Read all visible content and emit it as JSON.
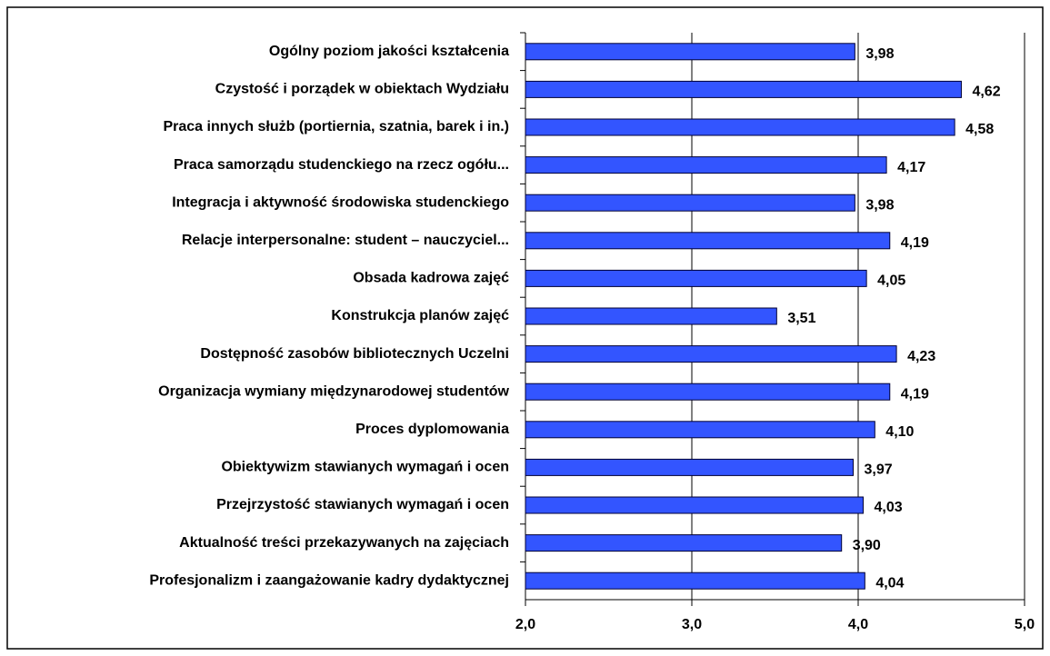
{
  "chart_data": {
    "type": "bar",
    "orientation": "horizontal",
    "categories": [
      "Ogólny poziom jakości kształcenia",
      "Czystość i porządek w obiektach Wydziału",
      "Praca innych służb (portiernia, szatnia, barek i in.)",
      "Praca samorządu studenckiego na rzecz ogółu...",
      "Integracja i aktywność środowiska studenckiego",
      "Relacje interpersonalne: student – nauczyciel...",
      "Obsada kadrowa zajęć",
      "Konstrukcja planów zajęć",
      "Dostępność zasobów bibliotecznych Uczelni",
      "Organizacja wymiany międzynarodowej studentów",
      "Proces dyplomowania",
      "Obiektywizm stawianych wymagań i ocen",
      "Przejrzystość stawianych wymagań i ocen",
      "Aktualność treści przekazywanych na zajęciach",
      "Profesjonalizm i zaangażowanie kadry dydaktycznej"
    ],
    "values": [
      3.98,
      4.62,
      4.58,
      4.17,
      3.98,
      4.19,
      4.05,
      3.51,
      4.23,
      4.19,
      4.1,
      3.97,
      4.03,
      3.9,
      4.04
    ],
    "value_labels": [
      "3,98",
      "4,62",
      "4,58",
      "4,17",
      "3,98",
      "4,19",
      "4,05",
      "3,51",
      "4,23",
      "4,19",
      "4,10",
      "3,97",
      "4,03",
      "3,90",
      "4,04"
    ],
    "color": "#3355ff",
    "xlim": [
      2,
      5
    ],
    "xticks": [
      {
        "value": 2,
        "label": "2,0"
      },
      {
        "value": 3,
        "label": "3,0"
      },
      {
        "value": 4,
        "label": "4,0"
      },
      {
        "value": 5,
        "label": "5,0"
      }
    ],
    "grid": true
  }
}
